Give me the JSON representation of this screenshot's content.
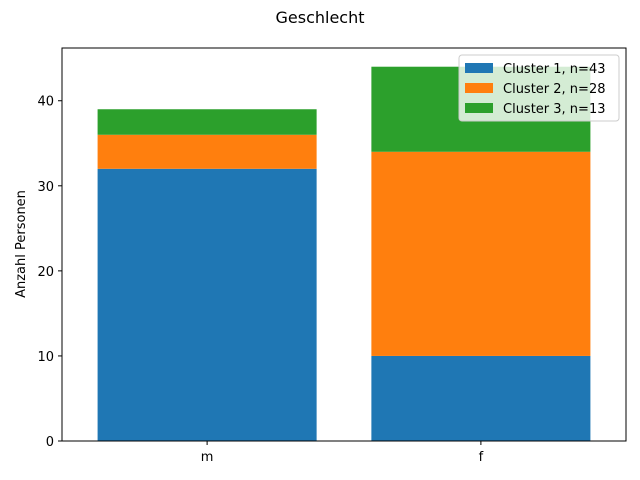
{
  "chart_data": {
    "type": "bar",
    "stacked": true,
    "title": "Geschlecht",
    "xlabel": "",
    "ylabel": "Anzahl Personen",
    "categories": [
      "m",
      "f"
    ],
    "series": [
      {
        "name": "Cluster 1, n=43",
        "values": [
          32,
          10
        ],
        "color": "#1f77b4"
      },
      {
        "name": "Cluster 2, n=28",
        "values": [
          4,
          24
        ],
        "color": "#ff7f0e"
      },
      {
        "name": "Cluster 3, n=13",
        "values": [
          3,
          10
        ],
        "color": "#2ca02c"
      }
    ],
    "ylim": [
      0,
      46.2
    ],
    "yticks": [
      0,
      10,
      20,
      30,
      40
    ],
    "grid": false,
    "legend_position": "top-right"
  }
}
